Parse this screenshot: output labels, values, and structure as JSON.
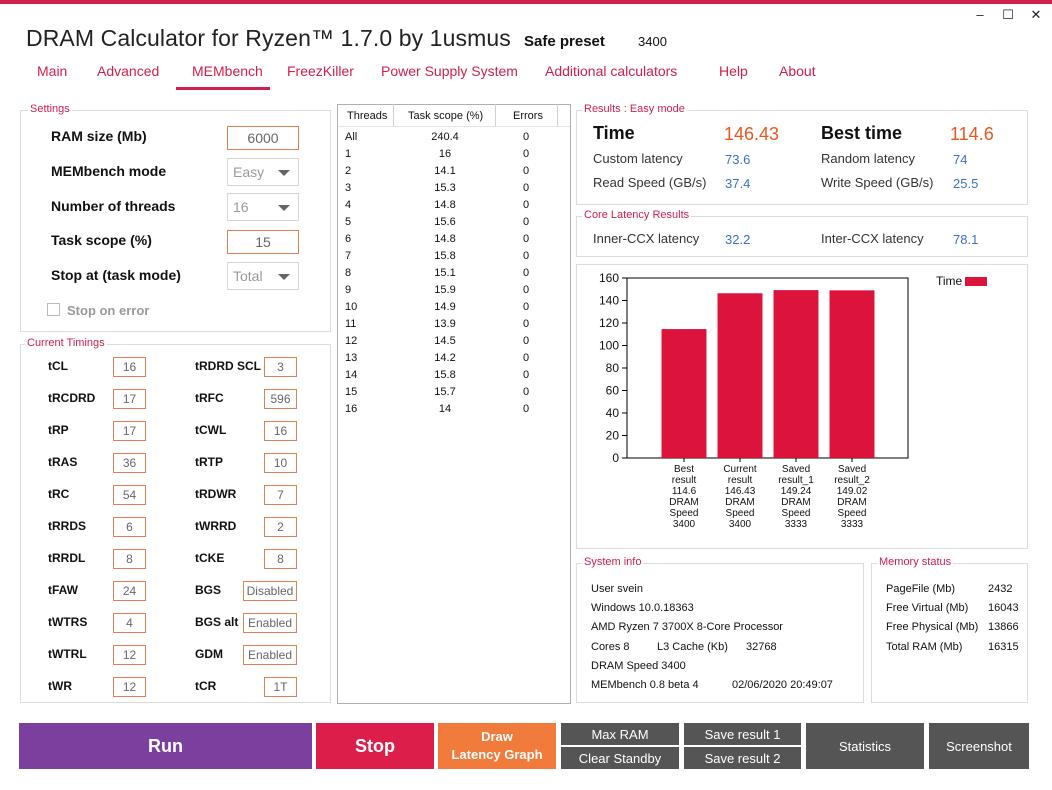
{
  "window": {
    "title": "DRAM Calculator for Ryzen™ 1.7.0 by 1usmus",
    "preset_label": "Safe preset",
    "preset_value": "3400",
    "min_glyph": "–",
    "max_glyph": "☐",
    "close_glyph": "✕"
  },
  "tabs": [
    "Main",
    "Advanced",
    "MEMbench",
    "FreezKiller",
    "Power Supply System",
    "Additional calculators",
    "Help",
    "About"
  ],
  "settings": {
    "title": "Settings",
    "ram_size_label": "RAM size (Mb)",
    "ram_size_value": "6000",
    "mode_label": "MEMbench mode",
    "mode_value": "Easy",
    "threads_label": "Number of threads",
    "threads_value": "16",
    "task_scope_label": "Task scope (%)",
    "task_scope_value": "15",
    "stop_at_label": "Stop at (task mode)",
    "stop_at_value": "Total",
    "stop_on_error_label": "Stop on error"
  },
  "timings": {
    "title": "Current Timings",
    "left": [
      {
        "label": "tCL",
        "value": "16"
      },
      {
        "label": "tRCDRD",
        "value": "17"
      },
      {
        "label": "tRP",
        "value": "17"
      },
      {
        "label": "tRAS",
        "value": "36"
      },
      {
        "label": "tRC",
        "value": "54"
      },
      {
        "label": "tRRDS",
        "value": "6"
      },
      {
        "label": "tRRDL",
        "value": "8"
      },
      {
        "label": "tFAW",
        "value": "24"
      },
      {
        "label": "tWTRS",
        "value": "4"
      },
      {
        "label": "tWTRL",
        "value": "12"
      },
      {
        "label": "tWR",
        "value": "12"
      }
    ],
    "right": [
      {
        "label": "tRDRD SCL",
        "value": "3"
      },
      {
        "label": "tRFC",
        "value": "596"
      },
      {
        "label": "tCWL",
        "value": "16"
      },
      {
        "label": "tRTP",
        "value": "10"
      },
      {
        "label": "tRDWR",
        "value": "7"
      },
      {
        "label": "tWRRD",
        "value": "2"
      },
      {
        "label": "tCKE",
        "value": "8"
      },
      {
        "label": "BGS",
        "value": "Disabled"
      },
      {
        "label": "BGS alt",
        "value": "Enabled"
      },
      {
        "label": "GDM",
        "value": "Enabled"
      },
      {
        "label": "tCR",
        "value": "1T"
      }
    ]
  },
  "thread_table": {
    "headers": [
      "Threads",
      "Task scope (%)",
      "Errors"
    ],
    "rows": [
      [
        "All",
        "240.4",
        "0"
      ],
      [
        "1",
        "16",
        "0"
      ],
      [
        "2",
        "14.1",
        "0"
      ],
      [
        "3",
        "15.3",
        "0"
      ],
      [
        "4",
        "14.8",
        "0"
      ],
      [
        "5",
        "15.6",
        "0"
      ],
      [
        "6",
        "14.8",
        "0"
      ],
      [
        "7",
        "15.8",
        "0"
      ],
      [
        "8",
        "15.1",
        "0"
      ],
      [
        "9",
        "15.9",
        "0"
      ],
      [
        "10",
        "14.9",
        "0"
      ],
      [
        "11",
        "13.9",
        "0"
      ],
      [
        "12",
        "14.5",
        "0"
      ],
      [
        "13",
        "14.2",
        "0"
      ],
      [
        "14",
        "15.8",
        "0"
      ],
      [
        "15",
        "15.7",
        "0"
      ],
      [
        "16",
        "14",
        "0"
      ]
    ]
  },
  "results": {
    "title": "Results : Easy mode",
    "time_label": "Time",
    "time_value": "146.43",
    "best_label": "Best time",
    "best_value": "114.6",
    "custom_latency_label": "Custom latency",
    "custom_latency_value": "73.6",
    "random_latency_label": "Random latency",
    "random_latency_value": "74",
    "read_speed_label": "Read Speed (GB/s)",
    "read_speed_value": "37.4",
    "write_speed_label": "Write Speed (GB/s)",
    "write_speed_value": "25.5"
  },
  "core_latency": {
    "title": "Core Latency Results",
    "inner_label": "Inner-CCX latency",
    "inner_value": "32.2",
    "inter_label": "Inter-CCX latency",
    "inter_value": "78.1"
  },
  "chart_data": {
    "type": "bar",
    "legend": "Time",
    "legend_position": "top-right",
    "bar_color": "#dc143c",
    "ylim": [
      0,
      160
    ],
    "yticks": [
      0,
      20,
      40,
      60,
      80,
      100,
      120,
      140,
      160
    ],
    "categories": [
      [
        "Best",
        "result",
        "114.6",
        "DRAM",
        "Speed",
        "3400"
      ],
      [
        "Current",
        "result",
        "146.43",
        "DRAM",
        "Speed",
        "3400"
      ],
      [
        "Saved",
        "result_1",
        "149.24",
        "DRAM",
        "Speed",
        "3333"
      ],
      [
        "Saved",
        "result_2",
        "149.02",
        "DRAM",
        "Speed",
        "3333"
      ]
    ],
    "values": [
      114.6,
      146.43,
      149.24,
      149.02
    ]
  },
  "system_info": {
    "title": "System info",
    "user": "User svein",
    "os": "Windows 10.0.18363",
    "cpu": "AMD Ryzen 7 3700X 8-Core Processor",
    "cores": "Cores 8",
    "l3_label": "L3 Cache (Kb)",
    "l3_value": "32768",
    "dram_speed": "DRAM Speed 3400",
    "membench": "MEMbench 0.8 beta 4",
    "datetime": "02/06/2020 20:49:07"
  },
  "memory_status": {
    "title": "Memory status",
    "rows": [
      {
        "label": "PageFile (Mb)",
        "value": "2432"
      },
      {
        "label": "Free Virtual (Mb)",
        "value": "16043"
      },
      {
        "label": "Free Physical (Mb)",
        "value": "13866"
      },
      {
        "label": "Total RAM (Mb)",
        "value": "16315"
      }
    ]
  },
  "buttons": {
    "run": "Run",
    "stop": "Stop",
    "draw_latency_1": "Draw",
    "draw_latency_2": "Latency Graph",
    "max_ram": "Max RAM",
    "clear_standby": "Clear Standby",
    "save_result_1": "Save result 1",
    "save_result_2": "Save result 2",
    "statistics": "Statistics",
    "screenshot": "Screenshot"
  },
  "colors": {
    "accent": "#d21f4a",
    "run": "#7b3f9e",
    "stop": "#dc1f4a",
    "draw": "#f07b3a",
    "grey_button": "#555555",
    "value_orange": "#e8571f",
    "value_blue": "#3a6fcf"
  }
}
